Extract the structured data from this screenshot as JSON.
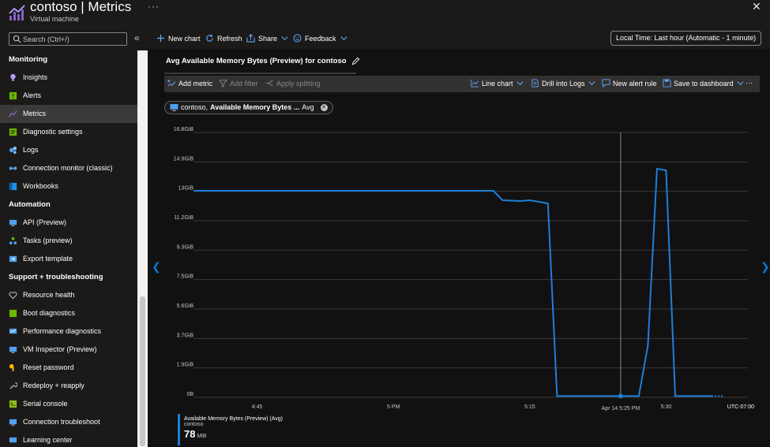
{
  "header": {
    "resource": "contoso",
    "separator": " | ",
    "page": "Metrics",
    "subtitle": "Virtual machine",
    "more": "···",
    "close": "✕"
  },
  "sidebar": {
    "search_placeholder": "Search (Ctrl+/)",
    "collapse": "«",
    "sections": [
      {
        "title": "Monitoring",
        "items": [
          {
            "label": "Insights",
            "icon": "bulb-icon",
            "color": "#b4a0ff"
          },
          {
            "label": "Alerts",
            "icon": "alert-icon",
            "color": "#6bb700"
          },
          {
            "label": "Metrics",
            "icon": "metrics-icon",
            "color": "#8661c5",
            "active": true
          },
          {
            "label": "Diagnostic settings",
            "icon": "diagnostic-icon",
            "color": "#6bb700"
          },
          {
            "label": "Logs",
            "icon": "logs-icon",
            "color": "#50a0f0"
          },
          {
            "label": "Connection monitor (classic)",
            "icon": "connection-monitor-icon",
            "color": "#50a0f0"
          },
          {
            "label": "Workbooks",
            "icon": "workbooks-icon",
            "color": "#1e90e8"
          }
        ]
      },
      {
        "title": "Automation",
        "items": [
          {
            "label": "API (Preview)",
            "icon": "api-icon",
            "color": "#50a0f0"
          },
          {
            "label": "Tasks (preview)",
            "icon": "tasks-icon",
            "color": "#6bb700"
          },
          {
            "label": "Export template",
            "icon": "export-template-icon",
            "color": "#50a0f0"
          }
        ]
      },
      {
        "title": "Support + troubleshooting",
        "items": [
          {
            "label": "Resource health",
            "icon": "heart-icon",
            "color": "#c8c6c4"
          },
          {
            "label": "Boot diagnostics",
            "icon": "boot-diagnostics-icon",
            "color": "#6bb700"
          },
          {
            "label": "Performance diagnostics",
            "icon": "performance-icon",
            "color": "#50a0f0"
          },
          {
            "label": "VM Inspector (Preview)",
            "icon": "vm-inspector-icon",
            "color": "#50a0f0"
          },
          {
            "label": "Reset password",
            "icon": "key-icon",
            "color": "#ffb900"
          },
          {
            "label": "Redeploy + reapply",
            "icon": "wrench-icon",
            "color": "#a0a0a0"
          },
          {
            "label": "Serial console",
            "icon": "serial-console-icon",
            "color": "#8cbd18"
          },
          {
            "label": "Connection troubleshoot",
            "icon": "troubleshoot-icon",
            "color": "#50a0f0"
          },
          {
            "label": "Learning center",
            "icon": "learning-icon",
            "color": "#50a0f0"
          }
        ]
      }
    ]
  },
  "toolbar": {
    "new_chart": "New chart",
    "refresh": "Refresh",
    "share": "Share",
    "feedback": "Feedback",
    "time_range": "Local Time: Last hour (Automatic - 1 minute)"
  },
  "chart_panel": {
    "title": "Avg Available Memory Bytes (Preview) for contoso",
    "add_metric": "Add metric",
    "add_filter": "Add filter",
    "apply_splitting": "Apply splitting",
    "line_chart": "Line chart",
    "drill_logs": "Drill into Logs",
    "new_alert": "New alert rule",
    "save_dashboard": "Save to dashboard",
    "more": "···",
    "pill_resource": "contoso,",
    "pill_metric": "Available Memory Bytes ...",
    "pill_agg": "Avg",
    "pill_close": "✕"
  },
  "legend": {
    "name": "Available Memory Bytes (Preview) (Avg)",
    "resource": "contoso",
    "value": "78",
    "unit": "MiB"
  },
  "colors": {
    "series": "#1e7fd8",
    "accent": "#0078d4"
  },
  "chart_data": {
    "type": "line",
    "y_ticks": [
      "0B",
      "1.9GiB",
      "3.7GiB",
      "5.6GiB",
      "7.5GiB",
      "9.3GiB",
      "11.2GiB",
      "13GiB",
      "14.9GiB",
      "16.8GiB"
    ],
    "ylim": [
      0,
      16.8
    ],
    "y_unit": "GiB",
    "x_ticks": [
      {
        "label": "4:45",
        "t": 5
      },
      {
        "label": "5 PM",
        "t": 20
      },
      {
        "label": "5:15",
        "t": 35
      },
      {
        "label": "5:30",
        "t": 50
      }
    ],
    "xlim": [
      -2,
      59
    ],
    "timezone": "UTC-07:00",
    "crosshair": {
      "label": "Apr 14 5:25 PM",
      "t": 45
    },
    "series": [
      {
        "name": "Available Memory Bytes (Preview) (Avg)",
        "x": [
          -2,
          31,
          32,
          34,
          35,
          36,
          37,
          38,
          45,
          47,
          48,
          49,
          50,
          51,
          52,
          55
        ],
        "y": [
          13.1,
          13.1,
          12.5,
          12.45,
          12.5,
          12.4,
          12.3,
          0.08,
          0.08,
          0.08,
          3.3,
          14.5,
          14.4,
          0.08,
          0.08,
          0.08
        ]
      }
    ],
    "grid": true
  }
}
